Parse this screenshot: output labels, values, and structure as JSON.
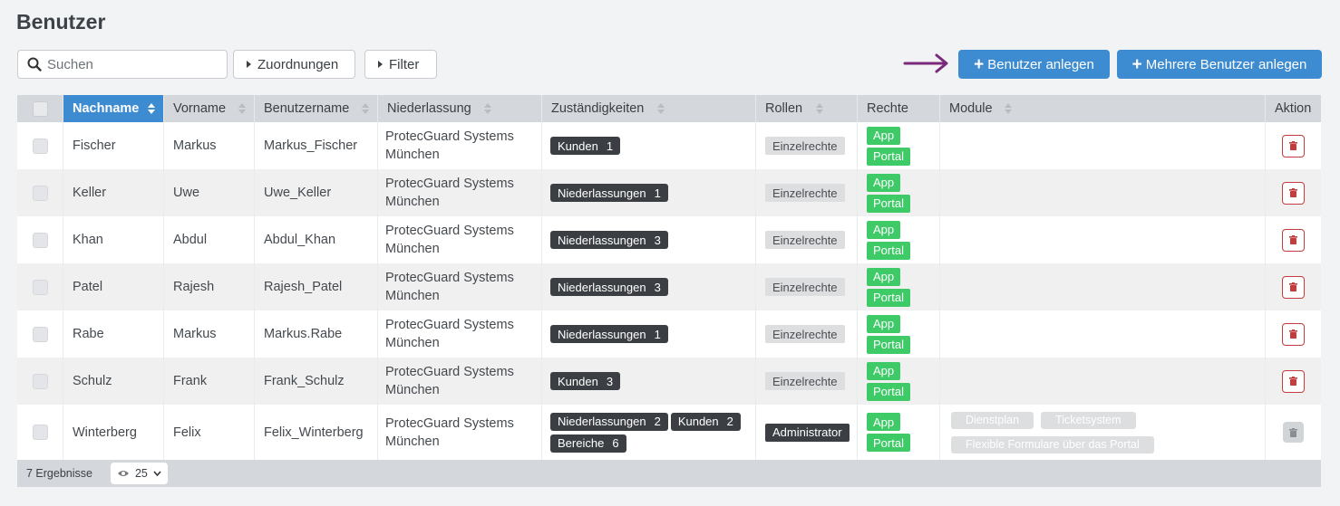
{
  "page": {
    "title": "Benutzer"
  },
  "toolbar": {
    "search_placeholder": "Suchen",
    "zuordnungen_label": "Zuordnungen",
    "filter_label": "Filter",
    "add_user_label": "Benutzer anlegen",
    "add_multi_label": "Mehrere Benutzer anlegen"
  },
  "colors": {
    "primary": "#3d8bd0",
    "success": "#3fca68",
    "dark_badge": "#3b3f44",
    "danger": "#c43c3c",
    "arrow": "#7a2a7a"
  },
  "icons": {
    "search": "search-icon",
    "caret": "caret-right-icon",
    "plus": "plus-icon",
    "sort": "sort-icon",
    "trash": "trash-icon",
    "eye": "eye-icon",
    "chevron": "chevron-down-icon",
    "arrow": "arrow-right-icon"
  },
  "table": {
    "columns": [
      "Nachname",
      "Vorname",
      "Benutzername",
      "Niederlassung",
      "Zuständigkeiten",
      "Rollen",
      "Rechte",
      "Module",
      "Aktion"
    ],
    "sorted_column": "Nachname",
    "rows": [
      {
        "nachname": "Fischer",
        "vorname": "Markus",
        "benutzername": "Markus_Fischer",
        "niederlassung": [
          "ProtecGuard Systems",
          "München"
        ],
        "zust": [
          {
            "label": "Kunden",
            "count": "1"
          }
        ],
        "rolle": "Einzelrechte",
        "rechte": [
          "App",
          "Portal"
        ],
        "module": []
      },
      {
        "nachname": "Keller",
        "vorname": "Uwe",
        "benutzername": "Uwe_Keller",
        "niederlassung": [
          "ProtecGuard Systems",
          "München"
        ],
        "zust": [
          {
            "label": "Niederlassungen",
            "count": "1"
          }
        ],
        "rolle": "Einzelrechte",
        "rechte": [
          "App",
          "Portal"
        ],
        "module": []
      },
      {
        "nachname": "Khan",
        "vorname": "Abdul",
        "benutzername": "Abdul_Khan",
        "niederlassung": [
          "ProtecGuard Systems",
          "München"
        ],
        "zust": [
          {
            "label": "Niederlassungen",
            "count": "3"
          }
        ],
        "rolle": "Einzelrechte",
        "rechte": [
          "App",
          "Portal"
        ],
        "module": []
      },
      {
        "nachname": "Patel",
        "vorname": "Rajesh",
        "benutzername": "Rajesh_Patel",
        "niederlassung": [
          "ProtecGuard Systems",
          "München"
        ],
        "zust": [
          {
            "label": "Niederlassungen",
            "count": "3"
          }
        ],
        "rolle": "Einzelrechte",
        "rechte": [
          "App",
          "Portal"
        ],
        "module": []
      },
      {
        "nachname": "Rabe",
        "vorname": "Markus",
        "benutzername": "Markus.Rabe",
        "niederlassung": [
          "ProtecGuard Systems",
          "München"
        ],
        "zust": [
          {
            "label": "Niederlassungen",
            "count": "1"
          }
        ],
        "rolle": "Einzelrechte",
        "rechte": [
          "App",
          "Portal"
        ],
        "module": []
      },
      {
        "nachname": "Schulz",
        "vorname": "Frank",
        "benutzername": "Frank_Schulz",
        "niederlassung": [
          "ProtecGuard Systems",
          "München"
        ],
        "zust": [
          {
            "label": "Kunden",
            "count": "3"
          }
        ],
        "rolle": "Einzelrechte",
        "rechte": [
          "App",
          "Portal"
        ],
        "module": []
      },
      {
        "nachname": "Winterberg",
        "vorname": "Felix",
        "benutzername": "Felix_Winterberg",
        "niederlassung": [
          "ProtecGuard Systems",
          "München"
        ],
        "zust": [
          {
            "label": "Niederlassungen",
            "count": "2"
          },
          {
            "label": "Kunden",
            "count": "2"
          },
          {
            "label": "Bereiche",
            "count": "6"
          }
        ],
        "rolle": "Administrator",
        "rechte": [
          "App",
          "Portal"
        ],
        "module": [
          "Dienstplan",
          "Ticketsystem",
          "Flexible Formulare über das Portal"
        ]
      }
    ]
  },
  "footer": {
    "results": "7 Ergebnisse",
    "page_size": "25"
  }
}
